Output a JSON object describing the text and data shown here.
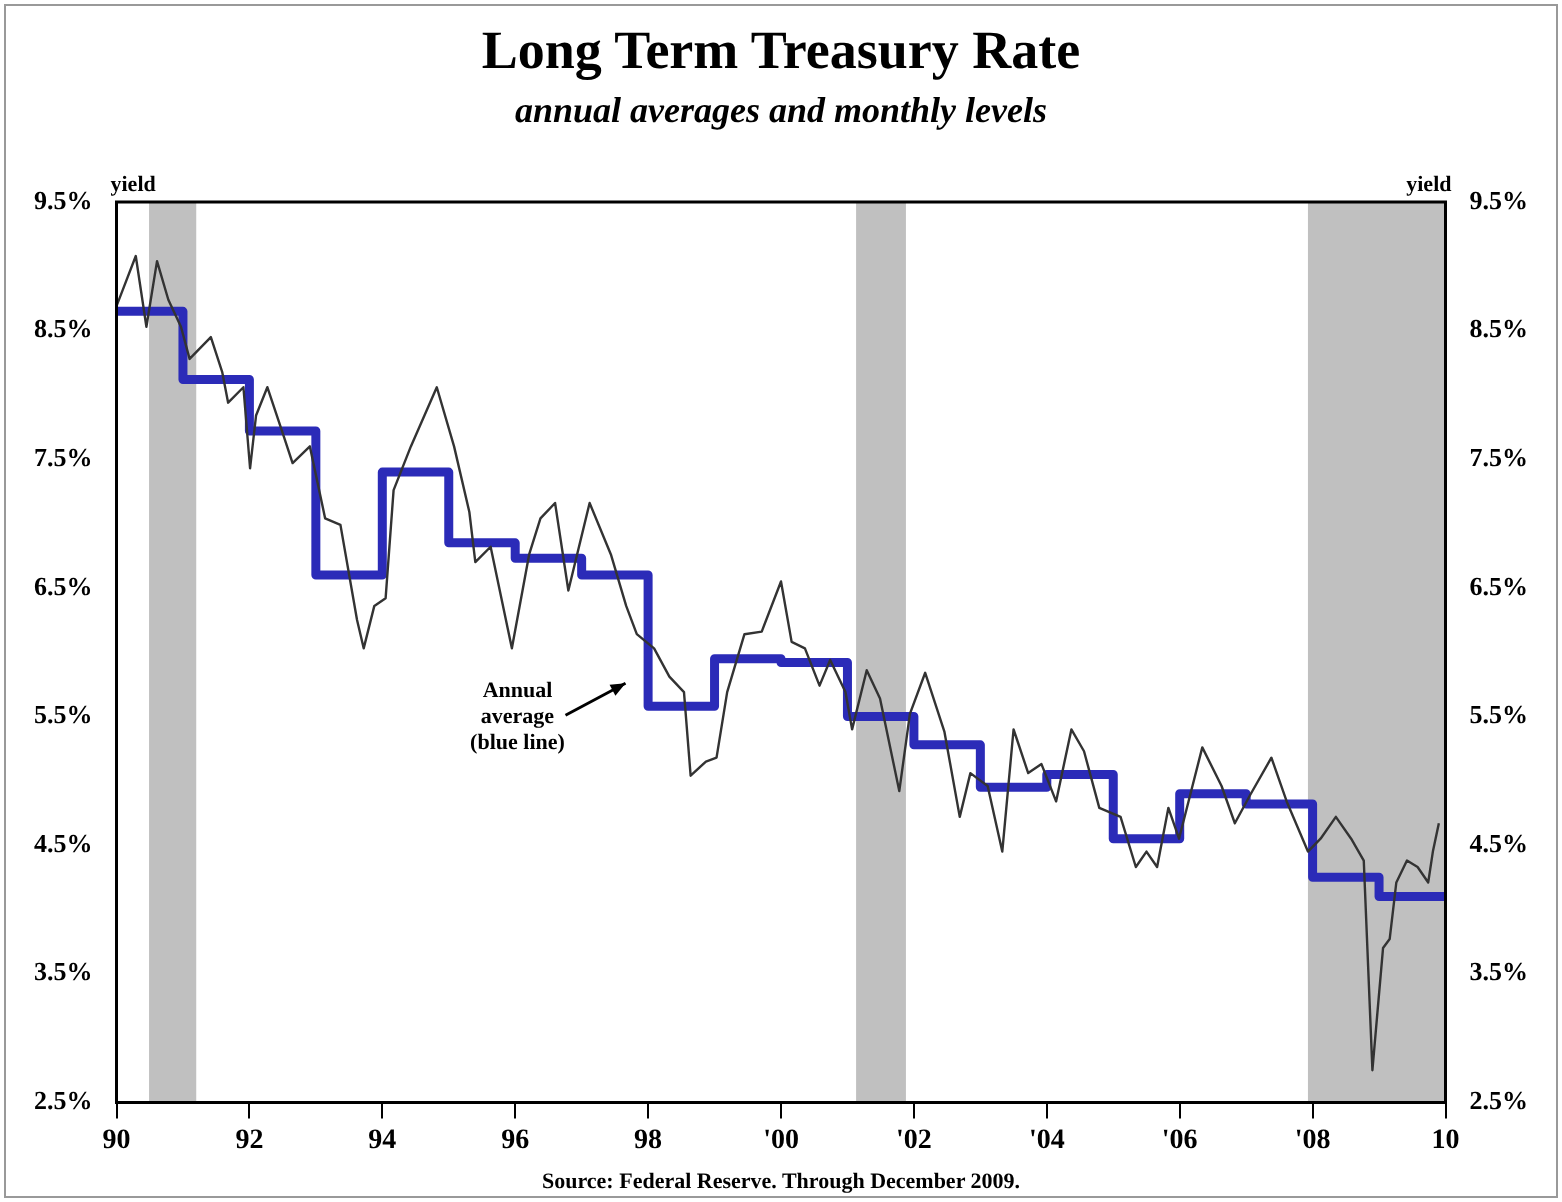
{
  "chart_data": {
    "type": "line",
    "title": "Long Term Treasury Rate",
    "subtitle": "annual averages and monthly levels",
    "ylabel": "yield",
    "y2label": "yield",
    "xlim": [
      1990,
      2010
    ],
    "xticks": [
      {
        "value": 1990,
        "label": "90"
      },
      {
        "value": 1992,
        "label": "92"
      },
      {
        "value": 1994,
        "label": "94"
      },
      {
        "value": 1996,
        "label": "96"
      },
      {
        "value": 1998,
        "label": "98"
      },
      {
        "value": 2000,
        "label": "'00"
      },
      {
        "value": 2002,
        "label": "'02"
      },
      {
        "value": 2004,
        "label": "'04"
      },
      {
        "value": 2006,
        "label": "'06"
      },
      {
        "value": 2008,
        "label": "'08"
      },
      {
        "value": 2010,
        "label": "10"
      }
    ],
    "ylim": [
      2.5,
      9.5
    ],
    "yticks": [
      {
        "value": 2.5,
        "label": "2.5%"
      },
      {
        "value": 3.5,
        "label": "3.5%"
      },
      {
        "value": 4.5,
        "label": "4.5%"
      },
      {
        "value": 5.5,
        "label": "5.5%"
      },
      {
        "value": 6.5,
        "label": "6.5%"
      },
      {
        "value": 7.5,
        "label": "7.5%"
      },
      {
        "value": 8.5,
        "label": "8.5%"
      },
      {
        "value": 9.5,
        "label": "9.5%"
      }
    ],
    "y2lim": [
      2.5,
      9.5
    ],
    "y2ticks": [
      {
        "value": 2.5,
        "label": "2.5%"
      },
      {
        "value": 3.5,
        "label": "3.5%"
      },
      {
        "value": 4.5,
        "label": "4.5%"
      },
      {
        "value": 5.5,
        "label": "5.5%"
      },
      {
        "value": 6.5,
        "label": "6.5%"
      },
      {
        "value": 7.5,
        "label": "7.5%"
      },
      {
        "value": 8.5,
        "label": "8.5%"
      },
      {
        "value": 9.5,
        "label": "9.5%"
      }
    ],
    "grid": false,
    "legend": false,
    "bands": [
      {
        "axis": "x",
        "from": 1990.49,
        "to": 1991.2,
        "color": "#c0c0c0"
      },
      {
        "axis": "x",
        "from": 2001.13,
        "to": 2001.88,
        "color": "#c0c0c0"
      },
      {
        "axis": "x",
        "from": 2007.93,
        "to": 2010,
        "color": "#c0c0c0"
      }
    ],
    "series": [
      {
        "type": "line",
        "color": "#333333",
        "x": [
          1990.0,
          1990.29,
          1990.45,
          1990.61,
          1990.78,
          1990.97,
          1991.1,
          1991.42,
          1991.59,
          1991.68,
          1991.91,
          1992.01,
          1992.1,
          1992.27,
          1992.49,
          1992.65,
          1992.91,
          1993.14,
          1993.37,
          1993.62,
          1993.72,
          1993.88,
          1994.05,
          1994.17,
          1994.43,
          1994.82,
          1995.08,
          1995.31,
          1995.4,
          1995.63,
          1995.95,
          1996.21,
          1996.38,
          1996.6,
          1996.8,
          1997.12,
          1997.44,
          1997.67,
          1997.83,
          1998.09,
          1998.32,
          1998.54,
          1998.64,
          1998.87,
          1999.03,
          1999.19,
          1999.45,
          1999.71,
          2000.0,
          2000.16,
          2000.36,
          2000.58,
          2000.74,
          2000.97,
          2001.07,
          2001.29,
          2001.49,
          2001.78,
          2001.94,
          2002.17,
          2002.46,
          2002.69,
          2002.85,
          2003.11,
          2003.33,
          2003.5,
          2003.72,
          2003.92,
          2004.14,
          2004.37,
          2004.56,
          2004.79,
          2005.11,
          2005.34,
          2005.5,
          2005.66,
          2005.83,
          2005.99,
          2006.34,
          2006.63,
          2006.83,
          2007.06,
          2007.38,
          2007.61,
          2007.93,
          2008.12,
          2008.35,
          2008.58,
          2008.77,
          2008.9,
          2009.06,
          2009.16,
          2009.26,
          2009.42,
          2009.58,
          2009.74,
          2009.81,
          2009.9
        ],
        "values": [
          8.69,
          9.08,
          8.53,
          9.04,
          8.74,
          8.53,
          8.28,
          8.45,
          8.18,
          7.94,
          8.06,
          7.43,
          7.84,
          8.06,
          7.72,
          7.47,
          7.6,
          7.04,
          6.99,
          6.25,
          6.03,
          6.36,
          6.42,
          7.26,
          7.6,
          8.06,
          7.6,
          7.09,
          6.7,
          6.82,
          6.03,
          6.76,
          7.04,
          7.16,
          6.48,
          7.16,
          6.76,
          6.36,
          6.14,
          6.03,
          5.81,
          5.69,
          5.04,
          5.15,
          5.18,
          5.69,
          6.14,
          6.16,
          6.55,
          6.08,
          6.03,
          5.74,
          5.94,
          5.69,
          5.4,
          5.86,
          5.64,
          4.92,
          5.52,
          5.84,
          5.38,
          4.72,
          5.06,
          4.96,
          4.45,
          5.4,
          5.06,
          5.13,
          4.84,
          5.4,
          5.23,
          4.79,
          4.72,
          4.33,
          4.45,
          4.33,
          4.79,
          4.55,
          5.26,
          4.96,
          4.67,
          4.89,
          5.18,
          4.84,
          4.45,
          4.55,
          4.72,
          4.55,
          4.38,
          2.75,
          3.7,
          3.77,
          4.21,
          4.38,
          4.33,
          4.21,
          4.45,
          4.67
        ]
      },
      {
        "type": "step",
        "color": "#2b2bb8",
        "x": [
          1990,
          1991,
          1992,
          1993,
          1994,
          1995,
          1996,
          1997,
          1998,
          1999,
          2000,
          2001,
          2002,
          2003,
          2004,
          2005,
          2006,
          2007,
          2008,
          2009,
          2010
        ],
        "values": [
          8.65,
          8.12,
          7.72,
          6.6,
          7.4,
          6.85,
          6.73,
          6.6,
          5.58,
          5.95,
          5.92,
          5.5,
          5.28,
          4.95,
          5.05,
          4.55,
          4.9,
          4.82,
          4.25,
          4.1,
          4.1
        ]
      }
    ],
    "annotations": [
      "Annual average (blue line)",
      "Source: Federal Reserve. Through December 2009."
    ]
  }
}
